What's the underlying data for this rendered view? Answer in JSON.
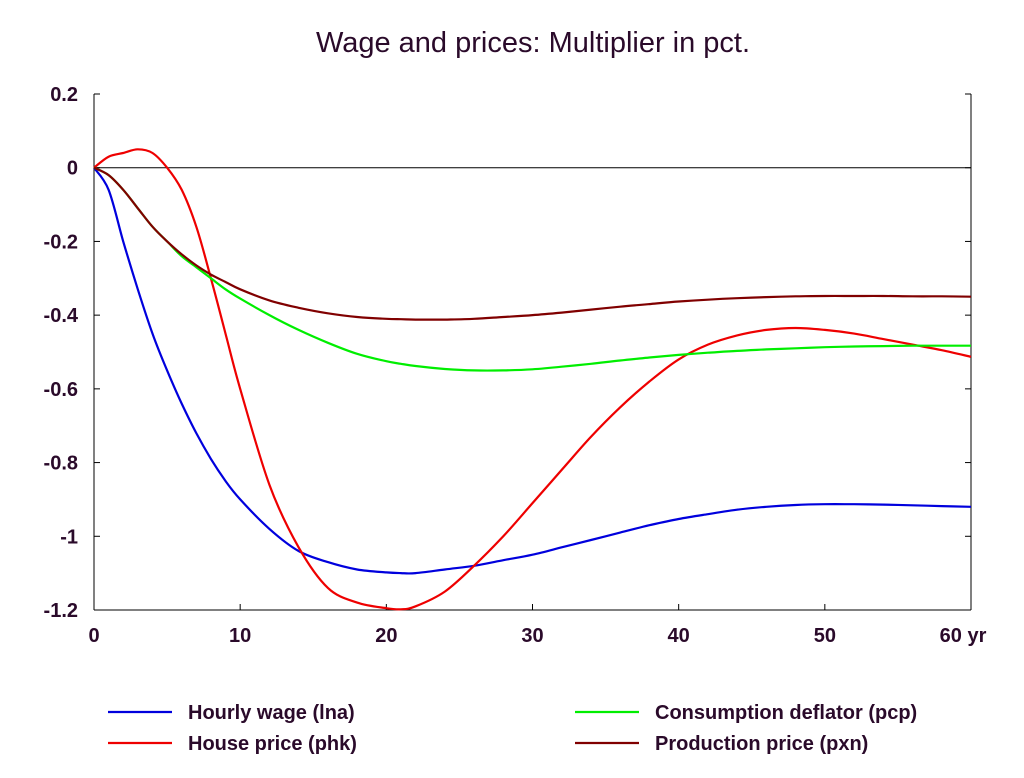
{
  "chart_data": {
    "type": "line",
    "title": "Wage and prices: Multiplier in pct.",
    "x_unit_label": "yr",
    "xlim": [
      0,
      60
    ],
    "ylim": [
      -1.2,
      0.2
    ],
    "x_ticks": [
      0,
      10,
      20,
      30,
      40,
      50,
      60
    ],
    "y_ticks": [
      0.2,
      0,
      -0.2,
      -0.4,
      -0.6,
      -0.8,
      -1,
      -1.2
    ],
    "x_tick_labels": [
      "0",
      "10",
      "20",
      "30",
      "40",
      "50",
      "60 yr"
    ],
    "y_tick_labels": [
      "0.2",
      "0",
      "-0.2",
      "-0.4",
      "-0.6",
      "-0.8",
      "-1",
      "-1.2"
    ],
    "zero_line": true,
    "grid": false,
    "legend_position": "bottom",
    "x": [
      0,
      1,
      2,
      3,
      4,
      5,
      6,
      7,
      8,
      9,
      10,
      12,
      14,
      16,
      18,
      20,
      21,
      22,
      24,
      26,
      28,
      30,
      32,
      34,
      36,
      38,
      40,
      42,
      44,
      46,
      48,
      50,
      52,
      54,
      56,
      58,
      60
    ],
    "series": [
      {
        "name": "Hourly wage (lna)",
        "color": "#0000dd",
        "values": [
          0,
          -0.06,
          -0.2,
          -0.33,
          -0.45,
          -0.55,
          -0.64,
          -0.72,
          -0.79,
          -0.85,
          -0.9,
          -0.98,
          -1.04,
          -1.07,
          -1.09,
          -1.098,
          -1.1,
          -1.1,
          -1.09,
          -1.08,
          -1.065,
          -1.05,
          -1.03,
          -1.01,
          -0.99,
          -0.97,
          -0.953,
          -0.94,
          -0.928,
          -0.92,
          -0.915,
          -0.913,
          -0.913,
          -0.914,
          -0.916,
          -0.918,
          -0.92
        ]
      },
      {
        "name": "House price (phk)",
        "color": "#ee0000",
        "values": [
          0,
          0.03,
          0.04,
          0.05,
          0.04,
          0.0,
          -0.06,
          -0.16,
          -0.3,
          -0.45,
          -0.6,
          -0.86,
          -1.03,
          -1.14,
          -1.18,
          -1.195,
          -1.198,
          -1.19,
          -1.15,
          -1.08,
          -1.0,
          -0.91,
          -0.82,
          -0.73,
          -0.65,
          -0.58,
          -0.52,
          -0.48,
          -0.455,
          -0.44,
          -0.435,
          -0.44,
          -0.45,
          -0.465,
          -0.48,
          -0.495,
          -0.513
        ]
      },
      {
        "name": "Consumption deflator (pcp)",
        "color": "#00ee00",
        "values": [
          0,
          -0.02,
          -0.06,
          -0.11,
          -0.16,
          -0.2,
          -0.24,
          -0.27,
          -0.3,
          -0.33,
          -0.355,
          -0.4,
          -0.44,
          -0.475,
          -0.505,
          -0.525,
          -0.532,
          -0.538,
          -0.546,
          -0.55,
          -0.55,
          -0.547,
          -0.54,
          -0.532,
          -0.523,
          -0.515,
          -0.508,
          -0.502,
          -0.497,
          -0.493,
          -0.49,
          -0.487,
          -0.485,
          -0.484,
          -0.483,
          -0.483,
          -0.483
        ]
      },
      {
        "name": "Production price (pxn)",
        "color": "#800000",
        "values": [
          0,
          -0.02,
          -0.06,
          -0.11,
          -0.16,
          -0.2,
          -0.235,
          -0.265,
          -0.29,
          -0.31,
          -0.33,
          -0.36,
          -0.38,
          -0.395,
          -0.405,
          -0.41,
          -0.411,
          -0.412,
          -0.412,
          -0.41,
          -0.405,
          -0.4,
          -0.393,
          -0.385,
          -0.377,
          -0.37,
          -0.363,
          -0.358,
          -0.354,
          -0.351,
          -0.349,
          -0.348,
          -0.348,
          -0.348,
          -0.349,
          -0.349,
          -0.35
        ]
      }
    ]
  }
}
